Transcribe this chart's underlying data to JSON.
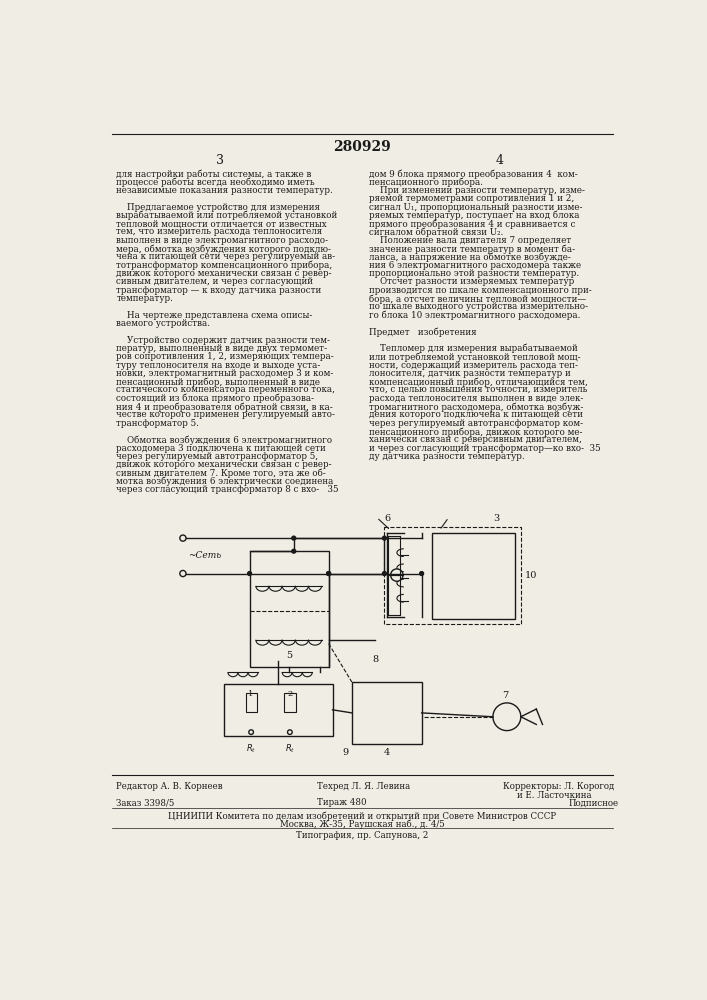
{
  "patent_number": "280929",
  "page_numbers": [
    "3",
    "4"
  ],
  "background_color": "#f0ede4",
  "text_color": "#1a1a1a",
  "col1_text": [
    "для настройки работы системы, а также в",
    "процессе работы всегда необходимо иметь",
    "независимые показания разности температур.",
    "",
    "    Предлагаемое устройство для измерения",
    "вырабатываемой или потребляемой установкой",
    "тепловой мощности отличается от известных",
    "тем, что измеритель расхода теплоносителя",
    "выполнен в виде электромагнитного расходо-",
    "мера, обмотка возбуждения которого подклю-",
    "чена к питающей сети через регулируемый ав-",
    "тотрансформатор компенсационного прибора,",
    "движок которого механически связан с ревер-",
    "сивным двигателем, и через согласующий",
    "трансформатор — к входу датчика разности",
    "температур.",
    "",
    "    На чертеже представлена схема описы-",
    "ваемого устройства.",
    "",
    "    Устройство содержит датчик разности тем-",
    "ператур, выполненный в виде двух термомет-",
    "ров сопротивления 1, 2, измеряющих темпера-",
    "туру теплоносителя на входе и выходе уста-",
    "новки, электромагнитный расходомер 3 и ком-",
    "пенсационный прибор, выполненный в виде",
    "статического компенсатора переменного тока,",
    "состоящий из блока прямого преобразова-",
    "ния 4 и преобразователя обратной связи, в ка-",
    "честве которого применен регулируемый авто-",
    "трансформатор 5.",
    "",
    "    Обмотка возбуждения 6 электромагнитного",
    "расходомера 3 подключена к питающей сети",
    "через регулируемый автотрансформатор 5,",
    "движок которого механически связан с ревер-",
    "сивным двигателем 7. Кроме того, эта же об-",
    "мотка возбуждения 6 электрически соединена",
    "через согласующий трансформатор 8 с вхо-   35"
  ],
  "col2_text": [
    "дом 9 блока прямого преобразования 4  ком-",
    "пенсационного прибора.",
    "    При изменении разности температур, изме-",
    "ряемой термометрами сопротивления 1 и 2,",
    "сигнал U₁, пропорциональный разности изме-",
    "ряемых температур, поступает на вход блока",
    "прямого преобразования 4 и сравнивается с",
    "сигналом обратной связи U₂.",
    "    Положение вала двигателя 7 определяет",
    "значение разности температур в момент ба-",
    "ланса, а напряжение на обмотке возбужде-",
    "ния 6 электромагнитного расходомера также",
    "пропорционально этой разности температур.",
    "    Отсчет разности измеряемых температур",
    "производится по шкале компенсационного при-",
    "бора, а отсчет величины тепловой мощности—",
    "по шкале выходного устройства измерительно-",
    "го блока 10 электромагнитного расходомера.",
    "",
    "Предмет   изобретения",
    "",
    "    Тепломер для измерения вырабатываемой",
    "или потребляемой установкой тепловой мощ-",
    "ности, содержащий измеритель расхода теп-",
    "лоносителя, датчик разности температур и",
    "компенсационный прибор, отличающийся тем,",
    "что, с целью повышения точности, измеритель",
    "расхода теплоносителя выполнен в виде элек-",
    "тромагнитного расходомера, обмотка возбуж-",
    "дения которого подключена к питающей сети",
    "через регулируемый автотрансформатор ком-",
    "пенсационного прибора, движок которого ме-",
    "ханически связан с реверсивным двигателем,",
    "и через согласующий трансформатор—ко вхо-  35",
    "ду датчика разности температур."
  ],
  "footer_editor": "Редактор А. В. Корнеев",
  "footer_techred": "Техред Л. Я. Левина",
  "footer_correctors": "Корректоры: Л. Корогод",
  "footer_correctors2": "и Е. Ласточкина",
  "footer_order": "Заказ 3398/5",
  "footer_tirazh": "Тираж 480",
  "footer_podpis": "Подписное",
  "footer_cniipi": "ЦНИИПИ Комитета по делам изобретений и открытий при Совете Министров СССР",
  "footer_address": "Москва, Ж-35, Раушская наб., д. 4/5",
  "footer_tipografia": "Типография, пр. Сапунова, 2"
}
